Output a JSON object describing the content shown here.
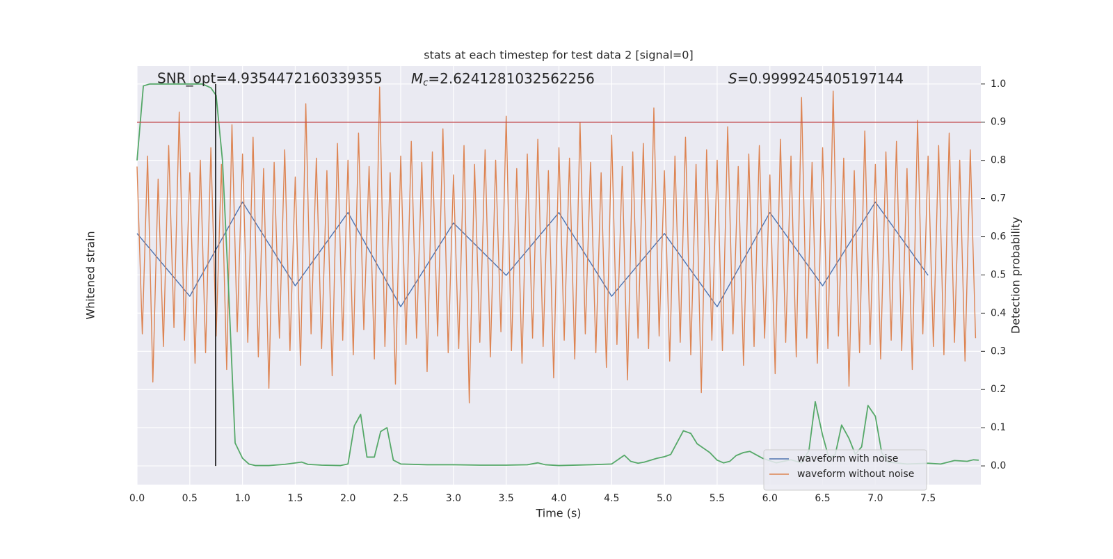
{
  "chart_data": {
    "type": "line",
    "title": "stats at each timestep for test data 2 [signal=0]",
    "xlabel": "Time (s)",
    "ylabel": "Whitened strain",
    "y2label": "Detection probability",
    "xlim": [
      0,
      8
    ],
    "ylim": [
      -1.1,
      0.9
    ],
    "y2lim": [
      -0.049,
      1.047
    ],
    "xticks": [
      {
        "value": 0,
        "label": "0.0"
      },
      {
        "value": 0.5,
        "label": "0.5"
      },
      {
        "value": 1,
        "label": "1.0"
      },
      {
        "value": 1.5,
        "label": "1.5"
      },
      {
        "value": 2,
        "label": "2.0"
      },
      {
        "value": 2.5,
        "label": "2.5"
      },
      {
        "value": 3,
        "label": "3.0"
      },
      {
        "value": 3.5,
        "label": "3.5"
      },
      {
        "value": 4,
        "label": "4.0"
      },
      {
        "value": 4.5,
        "label": "4.5"
      },
      {
        "value": 5,
        "label": "5.0"
      },
      {
        "value": 5.5,
        "label": "5.5"
      },
      {
        "value": 6,
        "label": "6.0"
      },
      {
        "value": 6.5,
        "label": "6.5"
      },
      {
        "value": 7,
        "label": "7.0"
      },
      {
        "value": 7.5,
        "label": "7.5"
      }
    ],
    "y2ticks": [
      {
        "value": 0,
        "label": "0.0"
      },
      0.1,
      0.2,
      0.3,
      0.4,
      0.5,
      0.6,
      0.7,
      0.8,
      0.9,
      {
        "value": 1,
        "label": "1.0"
      }
    ],
    "grid": true,
    "legend": "lower right",
    "annotations": [
      {
        "text": "SNR_opt=4.9354472160339355"
      },
      {
        "symbol": "M",
        "subscript": "c",
        "text": "=2.6241281032562256"
      },
      {
        "symbol": "S",
        "text": "=0.9999245405197144"
      }
    ],
    "hlines": [
      {
        "value": 0.9,
        "axis": "y2",
        "color": "#c44e52"
      }
    ],
    "vlines": [
      {
        "x": 0.745,
        "ymin": 0,
        "ymax": 1,
        "axis": "y2",
        "color": "#000000"
      }
    ],
    "series": [
      {
        "name": "waveform with noise",
        "color": "#4c72b0",
        "axis": "y",
        "x": [
          0,
          0.5,
          1,
          1.5,
          2,
          2.5,
          3,
          3.5,
          4,
          4.5,
          5,
          5.5,
          6,
          6.5,
          7,
          7.5
        ],
        "values": [
          0.1,
          -0.2,
          0.25,
          -0.15,
          0.2,
          -0.25,
          0.15,
          -0.1,
          0.2,
          -0.2,
          0.1,
          -0.25,
          0.2,
          -0.15,
          0.25,
          -0.1
        ]
      },
      {
        "name": "waveform without noise",
        "color": "#dd8452",
        "axis": "y",
        "x": [
          0,
          0.05,
          0.1,
          0.15,
          0.2,
          0.25,
          0.3,
          0.35,
          0.4,
          0.45,
          0.5,
          0.55,
          0.6,
          0.65,
          0.7,
          0.75,
          0.8,
          0.85,
          0.9,
          0.95,
          1,
          1.05,
          1.1,
          1.15,
          1.2,
          1.25,
          1.3,
          1.35,
          1.4,
          1.45,
          1.5,
          1.55,
          1.6,
          1.65,
          1.7,
          1.75,
          1.8,
          1.85,
          1.9,
          1.95,
          2,
          2.05,
          2.1,
          2.15,
          2.2,
          2.25,
          2.3,
          2.35,
          2.4,
          2.45,
          2.5,
          2.55,
          2.6,
          2.65,
          2.7,
          2.75,
          2.8,
          2.85,
          2.9,
          2.95,
          3,
          3.05,
          3.1,
          3.15,
          3.2,
          3.25,
          3.3,
          3.35,
          3.4,
          3.45,
          3.5,
          3.55,
          3.6,
          3.65,
          3.7,
          3.75,
          3.8,
          3.85,
          3.9,
          3.95,
          4,
          4.05,
          4.1,
          4.15,
          4.2,
          4.25,
          4.3,
          4.35,
          4.4,
          4.45,
          4.5,
          4.55,
          4.6,
          4.65,
          4.7,
          4.75,
          4.8,
          4.85,
          4.9,
          4.95,
          5,
          5.05,
          5.1,
          5.15,
          5.2,
          5.25,
          5.3,
          5.35,
          5.4,
          5.45,
          5.5,
          5.55,
          5.6,
          5.65,
          5.7,
          5.75,
          5.8,
          5.85,
          5.9,
          5.95,
          6,
          6.05,
          6.1,
          6.15,
          6.2,
          6.25,
          6.3,
          6.35,
          6.4,
          6.45,
          6.5,
          6.55,
          6.6,
          6.65,
          6.7,
          6.75,
          6.8,
          6.85,
          6.9,
          6.95,
          7,
          7.05,
          7.1,
          7.15,
          7.2,
          7.25,
          7.3,
          7.35,
          7.4,
          7.45,
          7.5,
          7.55,
          7.6,
          7.65,
          7.7,
          7.75,
          7.8,
          7.85,
          7.9,
          7.95
        ],
        "values": [
          0.42,
          -0.38,
          0.47,
          -0.61,
          0.36,
          -0.44,
          0.52,
          -0.35,
          0.68,
          -0.41,
          0.39,
          -0.52,
          0.45,
          -0.47,
          0.51,
          -0.39,
          0.43,
          -0.55,
          0.62,
          -0.37,
          0.48,
          -0.42,
          0.56,
          -0.49,
          0.41,
          -0.64,
          0.44,
          -0.4,
          0.5,
          -0.46,
          0.37,
          -0.53,
          0.72,
          -0.38,
          0.46,
          -0.45,
          0.4,
          -0.58,
          0.53,
          -0.41,
          0.45,
          -0.48,
          0.58,
          -0.36,
          0.42,
          -0.5,
          0.8,
          -0.44,
          0.39,
          -0.62,
          0.47,
          -0.43,
          0.54,
          -0.4,
          0.44,
          -0.56,
          0.49,
          -0.39,
          0.6,
          -0.47,
          0.38,
          -0.45,
          0.52,
          -0.71,
          0.43,
          -0.42,
          0.5,
          -0.49,
          0.45,
          -0.37,
          0.66,
          -0.46,
          0.41,
          -0.52,
          0.48,
          -0.4,
          0.55,
          -0.44,
          0.4,
          -0.59,
          0.51,
          -0.41,
          0.46,
          -0.5,
          0.63,
          -0.38,
          0.44,
          -0.47,
          0.39,
          -0.54,
          0.57,
          -0.43,
          0.42,
          -0.6,
          0.49,
          -0.4,
          0.53,
          -0.45,
          0.7,
          -0.39,
          0.4,
          -0.51,
          0.47,
          -0.42,
          0.56,
          -0.48,
          0.43,
          -0.66,
          0.5,
          -0.41,
          0.45,
          -0.46,
          0.61,
          -0.38,
          0.42,
          -0.53,
          0.48,
          -0.44,
          0.52,
          -0.4,
          0.38,
          -0.57,
          0.55,
          -0.42,
          0.47,
          -0.49,
          0.75,
          -0.4,
          0.44,
          -0.52,
          0.51,
          -0.45,
          0.78,
          -0.39,
          0.46,
          -0.63,
          0.4,
          -0.47,
          0.59,
          -0.43,
          0.43,
          -0.5,
          0.49,
          -0.41,
          0.54,
          -0.46,
          0.41,
          -0.55,
          0.64,
          -0.38,
          0.47,
          -0.44,
          0.52,
          -0.48,
          0.58,
          -0.42,
          0.45,
          -0.51,
          0.5,
          -0.4
        ]
      },
      {
        "color": "#55a868",
        "axis": "y2",
        "x": [
          0,
          0.06,
          0.12,
          0.5,
          0.62,
          0.7,
          0.75,
          0.81,
          0.87,
          0.93,
          1,
          1.06,
          1.12,
          1.25,
          1.4,
          1.56,
          1.62,
          1.75,
          1.93,
          2,
          2.06,
          2.12,
          2.18,
          2.25,
          2.31,
          2.37,
          2.43,
          2.5,
          2.75,
          3,
          3.25,
          3.5,
          3.7,
          3.8,
          3.87,
          4,
          4.3,
          4.5,
          4.62,
          4.68,
          4.75,
          4.81,
          4.93,
          5,
          5.06,
          5.18,
          5.25,
          5.31,
          5.43,
          5.5,
          5.56,
          5.62,
          5.68,
          5.75,
          5.81,
          5.93,
          6.06,
          6.2,
          6.3,
          6.37,
          6.43,
          6.5,
          6.56,
          6.62,
          6.68,
          6.75,
          6.81,
          6.87,
          6.93,
          7,
          7.06,
          7.12,
          7.3,
          7.5,
          7.62,
          7.75,
          7.87,
          7.93,
          7.98
        ],
        "values": [
          0.8,
          0.995,
          1,
          1,
          1,
          0.99,
          0.97,
          0.8,
          0.45,
          0.06,
          0.02,
          0.005,
          0.001,
          0.001,
          0.004,
          0.01,
          0.004,
          0.002,
          0.001,
          0.005,
          0.105,
          0.135,
          0.023,
          0.023,
          0.09,
          0.1,
          0.015,
          0.005,
          0.003,
          0.003,
          0.002,
          0.002,
          0.003,
          0.008,
          0.003,
          0.001,
          0.003,
          0.005,
          0.028,
          0.012,
          0.007,
          0.01,
          0.02,
          0.024,
          0.03,
          0.092,
          0.085,
          0.058,
          0.035,
          0.015,
          0.008,
          0.012,
          0.027,
          0.035,
          0.038,
          0.02,
          0.008,
          0.016,
          0.008,
          0.04,
          0.168,
          0.08,
          0.02,
          0.03,
          0.107,
          0.072,
          0.03,
          0.05,
          0.158,
          0.13,
          0.035,
          0.01,
          0.005,
          0.007,
          0.005,
          0.014,
          0.012,
          0.016,
          0.015
        ]
      }
    ]
  }
}
